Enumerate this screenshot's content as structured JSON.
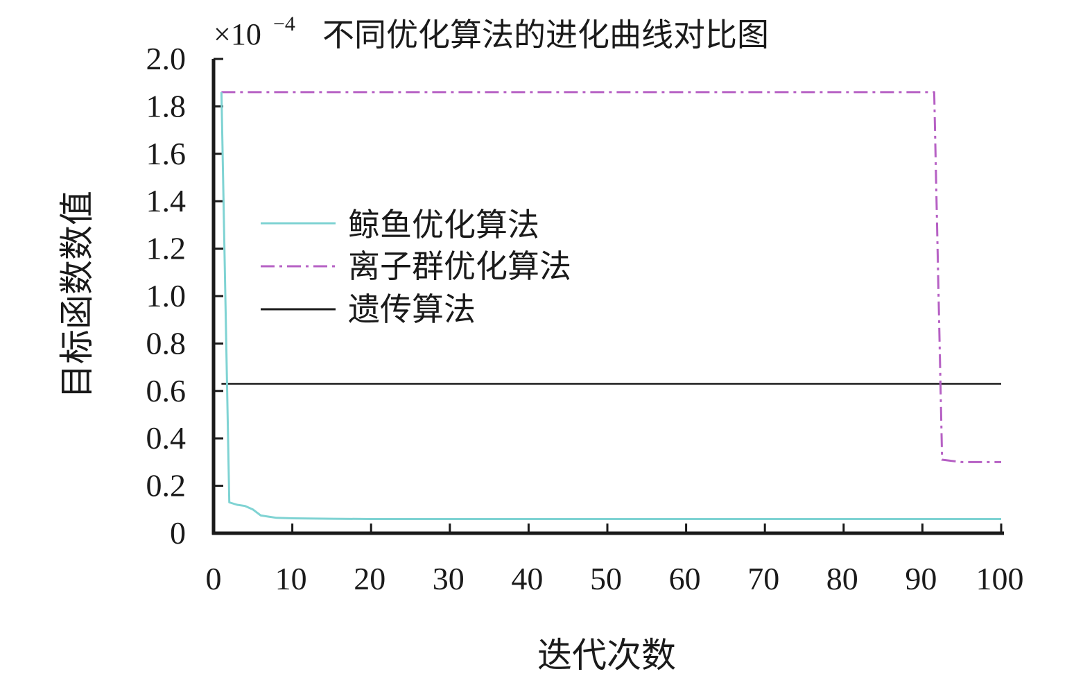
{
  "chart_data": {
    "type": "line",
    "title": "不同优化算法的进化曲线对比图",
    "scale_factor": {
      "base": "×10",
      "exponent": "−4"
    },
    "xlabel": "迭代次数",
    "ylabel": "目标函数数值",
    "xlim": [
      0,
      100
    ],
    "ylim": [
      0,
      2.0
    ],
    "x_ticks": [
      "0",
      "10",
      "20",
      "30",
      "40",
      "50",
      "60",
      "70",
      "80",
      "90",
      "100"
    ],
    "y_ticks": [
      "0",
      "0.2",
      "0.4",
      "0.6",
      "0.8",
      "1.0",
      "1.2",
      "1.4",
      "1.6",
      "1.8",
      "2.0"
    ],
    "grid": false,
    "legend_position": "upper-left",
    "series": [
      {
        "name": "鲸鱼优化算法",
        "color": "#7fd3d3",
        "style": "solid",
        "x": [
          1,
          2,
          3,
          4,
          5,
          6,
          7,
          8,
          10,
          15,
          20,
          30,
          50,
          70,
          100
        ],
        "y": [
          1.86,
          0.13,
          0.12,
          0.115,
          0.1,
          0.075,
          0.07,
          0.065,
          0.063,
          0.061,
          0.06,
          0.06,
          0.06,
          0.06,
          0.06
        ]
      },
      {
        "name": "离子群优化算法",
        "color": "#b660c4",
        "style": "dashdot",
        "x": [
          1,
          91.5,
          92.5,
          95,
          100
        ],
        "y": [
          1.86,
          1.86,
          0.31,
          0.3,
          0.3
        ]
      },
      {
        "name": "遗传算法",
        "color": "#1a1a1a",
        "style": "solid",
        "x": [
          1,
          100
        ],
        "y": [
          0.63,
          0.63
        ]
      }
    ]
  }
}
